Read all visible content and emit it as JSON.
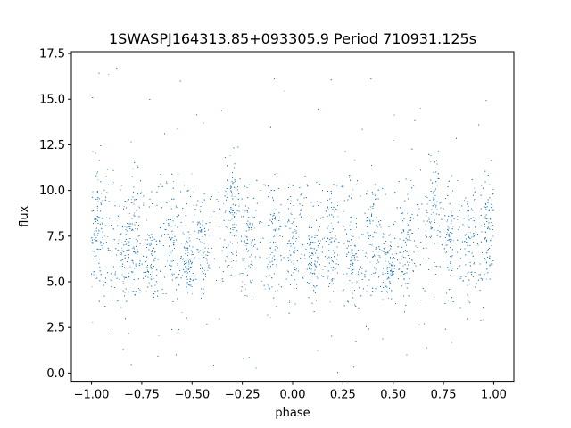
{
  "chart_data": {
    "type": "scatter",
    "title": "1SWASPJ164313.85+093305.9 Period 710931.125s",
    "xlabel": "phase",
    "ylabel": "flux",
    "xlim": [
      -1.1,
      1.1
    ],
    "ylim": [
      -0.45,
      17.6
    ],
    "x_ticks": [
      -1.0,
      -0.75,
      -0.5,
      -0.25,
      0.0,
      0.25,
      0.5,
      0.75,
      1.0
    ],
    "x_tick_labels": [
      "−1.00",
      "−0.75",
      "−0.50",
      "−0.25",
      "0.00",
      "0.25",
      "0.50",
      "0.75",
      "1.00"
    ],
    "y_ticks": [
      0.0,
      2.5,
      5.0,
      7.5,
      10.0,
      12.5,
      15.0,
      17.5
    ],
    "y_tick_labels": [
      "0.0",
      "2.5",
      "5.0",
      "7.5",
      "10.0",
      "12.5",
      "15.0",
      "17.5"
    ],
    "grid": false,
    "legend": "none",
    "marker_color": "#1f77b4",
    "series": [
      {
        "phase_range": [
          -1.0,
          1.0
        ],
        "point_count": 9000,
        "typical_flux_range": [
          4.5,
          10.5
        ],
        "outlier_flux_range": [
          0.0,
          16.7
        ],
        "clusters": [
          {
            "phase": -0.97,
            "flux_low": 5.5,
            "flux_high": 10.5
          },
          {
            "phase": -0.84,
            "flux_low": 4.5,
            "flux_high": 8.0
          },
          {
            "phase": -0.78,
            "flux_low": 5.0,
            "flux_high": 9.5
          },
          {
            "phase": -0.7,
            "flux_low": 4.5,
            "flux_high": 7.5
          },
          {
            "phase": -0.6,
            "flux_low": 5.5,
            "flux_high": 9.5
          },
          {
            "phase": -0.52,
            "flux_low": 4.5,
            "flux_high": 7.0
          },
          {
            "phase": -0.45,
            "flux_low": 5.5,
            "flux_high": 9.0
          },
          {
            "phase": -0.3,
            "flux_low": 7.0,
            "flux_high": 11.0
          },
          {
            "phase": -0.22,
            "flux_low": 5.5,
            "flux_high": 9.5
          },
          {
            "phase": -0.1,
            "flux_low": 5.0,
            "flux_high": 9.0
          },
          {
            "phase": 0.0,
            "flux_low": 5.5,
            "flux_high": 9.0
          },
          {
            "phase": 0.1,
            "flux_low": 4.5,
            "flux_high": 7.5
          },
          {
            "phase": 0.2,
            "flux_low": 5.0,
            "flux_high": 9.0
          },
          {
            "phase": 0.3,
            "flux_low": 4.5,
            "flux_high": 7.5
          },
          {
            "phase": 0.4,
            "flux_low": 5.5,
            "flux_high": 9.5
          },
          {
            "phase": 0.48,
            "flux_low": 4.5,
            "flux_high": 7.0
          },
          {
            "phase": 0.56,
            "flux_low": 5.5,
            "flux_high": 9.0
          },
          {
            "phase": 0.7,
            "flux_low": 7.0,
            "flux_high": 11.0
          },
          {
            "phase": 0.78,
            "flux_low": 5.5,
            "flux_high": 9.5
          },
          {
            "phase": 0.88,
            "flux_low": 5.0,
            "flux_high": 9.0
          },
          {
            "phase": 0.97,
            "flux_low": 5.5,
            "flux_high": 10.5
          }
        ]
      }
    ]
  }
}
